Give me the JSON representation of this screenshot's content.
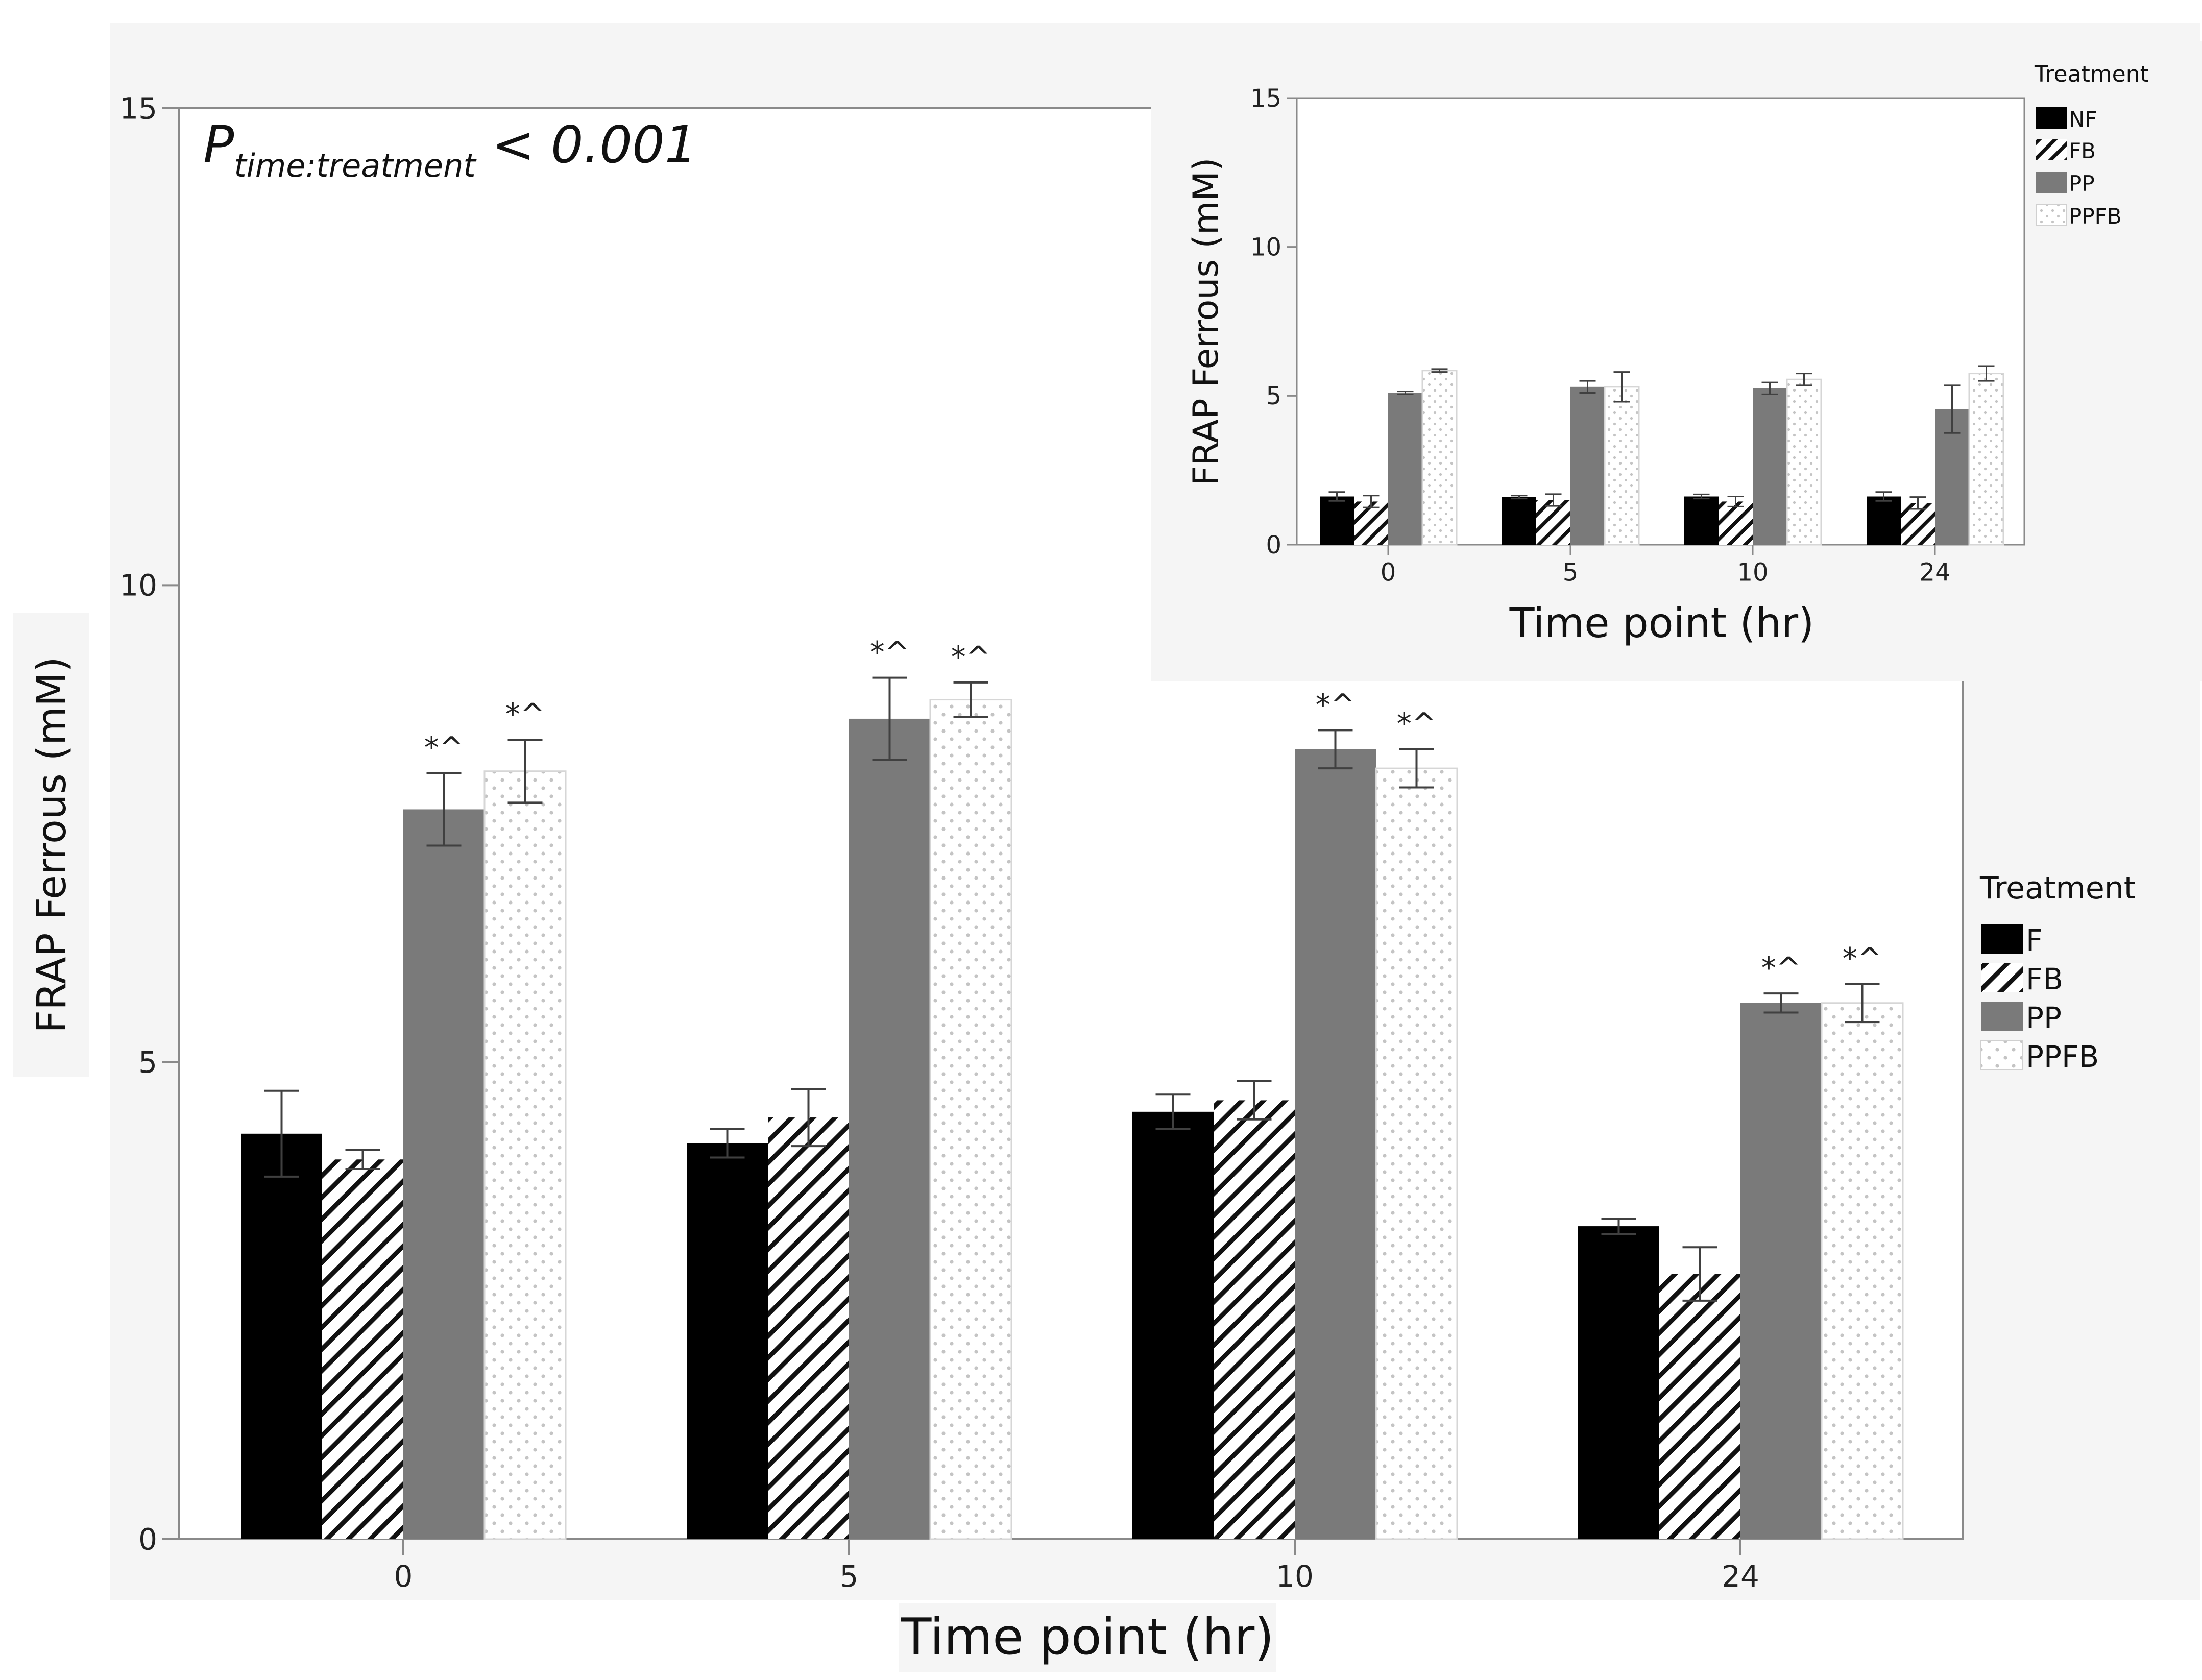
{
  "p_annotation": {
    "main": "P",
    "subscript": "time:treatment",
    "rest": " < 0.001"
  },
  "colors": {
    "panel": "#f5f5f5",
    "black_bar": "#000000",
    "gray_bar": "#7a7a7a",
    "axis": "#8a8a8a",
    "error": "#404040"
  },
  "chart_data": [
    {
      "id": "main",
      "type": "bar",
      "xlabel": "Time point (hr)",
      "ylabel": "FRAP Ferrous (mM)",
      "ylim": [
        0,
        15
      ],
      "yticks": [
        0,
        5,
        10,
        15
      ],
      "categories": [
        "0",
        "5",
        "10",
        "24"
      ],
      "legend_title": "Treatment",
      "legend_position": "right",
      "series": [
        {
          "name": "F",
          "pattern": "solid-black",
          "values": [
            4.25,
            4.15,
            4.48,
            3.28
          ],
          "errors": [
            0.45,
            0.15,
            0.18,
            0.08
          ]
        },
        {
          "name": "FB",
          "pattern": "hatch",
          "values": [
            3.98,
            4.42,
            4.6,
            2.78
          ],
          "errors": [
            0.1,
            0.3,
            0.2,
            0.28
          ]
        },
        {
          "name": "PP",
          "pattern": "solid-gray",
          "values": [
            7.65,
            8.6,
            8.28,
            5.62
          ],
          "errors": [
            0.38,
            0.43,
            0.2,
            0.1
          ]
        },
        {
          "name": "PPFB",
          "pattern": "dots",
          "values": [
            8.05,
            8.8,
            8.08,
            5.62
          ],
          "errors": [
            0.33,
            0.18,
            0.2,
            0.2
          ]
        }
      ],
      "significance": [
        {
          "series": "PP",
          "labels": [
            "*^",
            "*^",
            "*^",
            "*^"
          ]
        },
        {
          "series": "PPFB",
          "labels": [
            "*^",
            "*^",
            "*^",
            "*^"
          ]
        }
      ]
    },
    {
      "id": "inset",
      "type": "bar",
      "xlabel": "Time point (hr)",
      "ylabel": "FRAP Ferrous (mM)",
      "ylim": [
        0,
        15
      ],
      "yticks": [
        0,
        5,
        10,
        15
      ],
      "categories": [
        "0",
        "5",
        "10",
        "24"
      ],
      "legend_title": "Treatment",
      "legend_position": "top-right",
      "series": [
        {
          "name": "NF",
          "pattern": "solid-black",
          "values": [
            1.62,
            1.6,
            1.62,
            1.62
          ],
          "errors": [
            0.15,
            0.05,
            0.07,
            0.15
          ]
        },
        {
          "name": "FB",
          "pattern": "hatch",
          "values": [
            1.45,
            1.5,
            1.45,
            1.4
          ],
          "errors": [
            0.2,
            0.2,
            0.17,
            0.2
          ]
        },
        {
          "name": "PP",
          "pattern": "solid-gray",
          "values": [
            5.1,
            5.3,
            5.25,
            4.55
          ],
          "errors": [
            0.05,
            0.2,
            0.2,
            0.8
          ]
        },
        {
          "name": "PPFB",
          "pattern": "dots",
          "values": [
            5.85,
            5.3,
            5.55,
            5.75
          ],
          "errors": [
            0.05,
            0.5,
            0.2,
            0.25
          ]
        }
      ]
    }
  ]
}
